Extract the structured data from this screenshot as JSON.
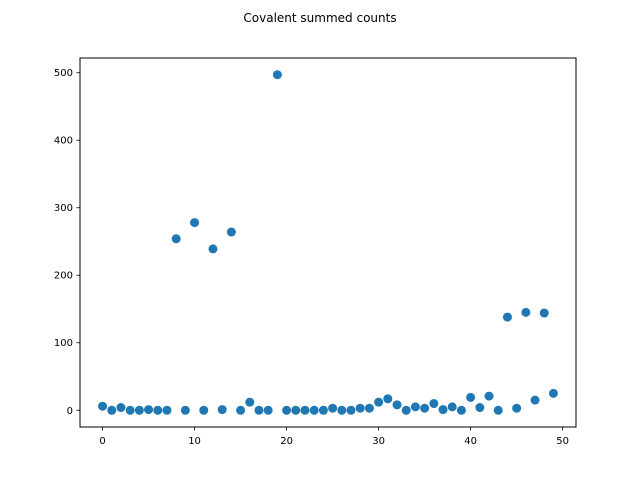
{
  "chart_data": {
    "type": "scatter",
    "title": "Covalent summed counts",
    "xlabel": "",
    "ylabel": "",
    "xlim": [
      -2.45,
      51.45
    ],
    "ylim": [
      -24.8,
      521.8
    ],
    "xticks": [
      0,
      10,
      20,
      30,
      40,
      50
    ],
    "yticks": [
      0,
      100,
      200,
      300,
      400,
      500
    ],
    "grid": false,
    "marker_color": "#1f77b4",
    "points": [
      {
        "x": 0,
        "y": 6
      },
      {
        "x": 1,
        "y": 0
      },
      {
        "x": 2,
        "y": 4
      },
      {
        "x": 3,
        "y": 0
      },
      {
        "x": 4,
        "y": 0
      },
      {
        "x": 5,
        "y": 1
      },
      {
        "x": 6,
        "y": 0
      },
      {
        "x": 7,
        "y": 0
      },
      {
        "x": 8,
        "y": 254
      },
      {
        "x": 9,
        "y": 0
      },
      {
        "x": 10,
        "y": 278
      },
      {
        "x": 11,
        "y": 0
      },
      {
        "x": 12,
        "y": 239
      },
      {
        "x": 13,
        "y": 1
      },
      {
        "x": 14,
        "y": 264
      },
      {
        "x": 15,
        "y": 0
      },
      {
        "x": 16,
        "y": 12
      },
      {
        "x": 17,
        "y": 0
      },
      {
        "x": 18,
        "y": 0
      },
      {
        "x": 19,
        "y": 497
      },
      {
        "x": 20,
        "y": 0
      },
      {
        "x": 21,
        "y": 0
      },
      {
        "x": 22,
        "y": 0
      },
      {
        "x": 23,
        "y": 0
      },
      {
        "x": 24,
        "y": 0
      },
      {
        "x": 25,
        "y": 3
      },
      {
        "x": 26,
        "y": 0
      },
      {
        "x": 27,
        "y": 0
      },
      {
        "x": 28,
        "y": 3
      },
      {
        "x": 29,
        "y": 3
      },
      {
        "x": 30,
        "y": 12
      },
      {
        "x": 31,
        "y": 17
      },
      {
        "x": 32,
        "y": 8
      },
      {
        "x": 33,
        "y": 0
      },
      {
        "x": 34,
        "y": 5
      },
      {
        "x": 35,
        "y": 3
      },
      {
        "x": 36,
        "y": 10
      },
      {
        "x": 37,
        "y": 1
      },
      {
        "x": 38,
        "y": 5
      },
      {
        "x": 39,
        "y": 0
      },
      {
        "x": 40,
        "y": 19
      },
      {
        "x": 41,
        "y": 4
      },
      {
        "x": 42,
        "y": 21
      },
      {
        "x": 43,
        "y": 0
      },
      {
        "x": 44,
        "y": 138
      },
      {
        "x": 45,
        "y": 3
      },
      {
        "x": 46,
        "y": 145
      },
      {
        "x": 47,
        "y": 15
      },
      {
        "x": 48,
        "y": 144
      },
      {
        "x": 49,
        "y": 25
      }
    ]
  }
}
